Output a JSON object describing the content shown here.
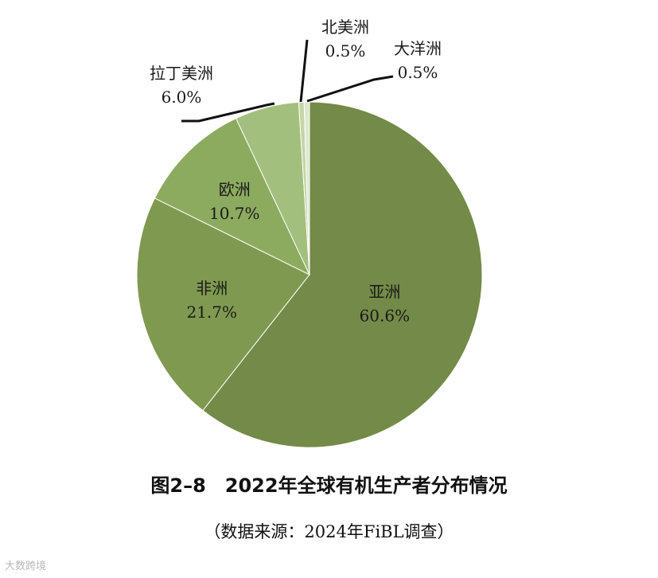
{
  "chart_data": {
    "type": "pie",
    "slices": [
      {
        "name": "亚洲",
        "value": 60.6,
        "label": "60.6%",
        "color": "#748a48"
      },
      {
        "name": "非洲",
        "value": 21.7,
        "label": "21.7%",
        "color": "#7f9a50"
      },
      {
        "name": "欧洲",
        "value": 10.7,
        "label": "10.7%",
        "color": "#8cab5f"
      },
      {
        "name": "拉丁美洲",
        "value": 6.0,
        "label": "6.0%",
        "color": "#a3bf7d"
      },
      {
        "name": "北美洲",
        "value": 0.5,
        "label": "0.5%",
        "color": "#c4d6a8"
      },
      {
        "name": "大洋洲",
        "value": 0.5,
        "label": "0.5%",
        "color": "#dde8cc"
      }
    ],
    "title": "图2–8　2022年全球有机生产者分布情况",
    "source": "（数据来源：2024年FiBL调查）"
  },
  "watermark": "大数跨境"
}
